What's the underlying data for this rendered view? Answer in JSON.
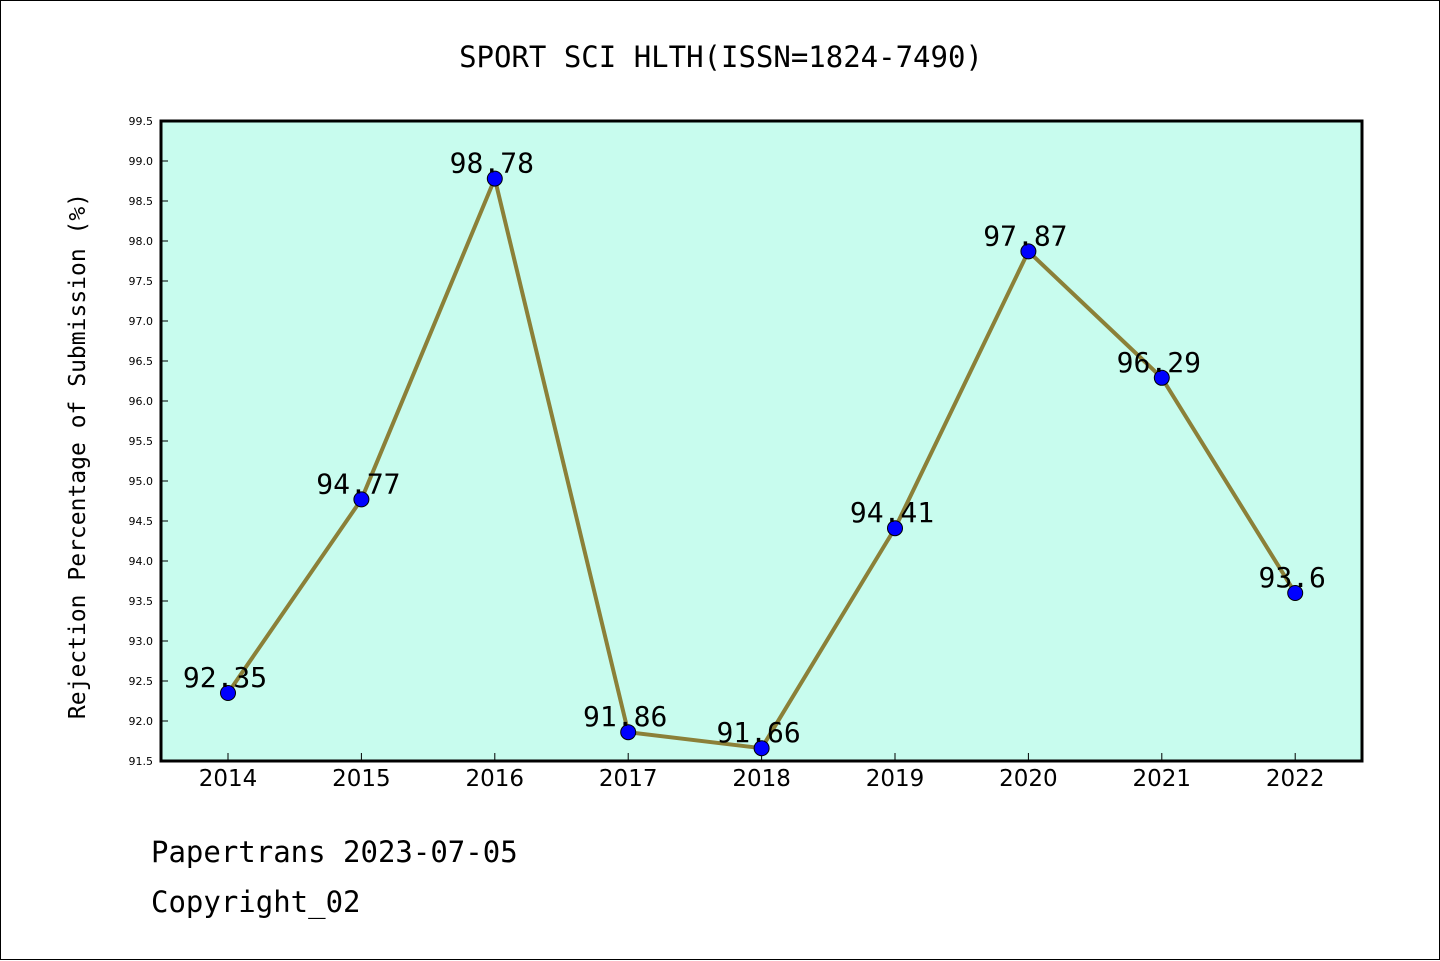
{
  "chart_data": {
    "type": "line",
    "title": "SPORT SCI HLTH(ISSN=1824-7490)",
    "xlabel": "",
    "ylabel": "Rejection Percentage of Submission (%)",
    "categories": [
      "2014",
      "2015",
      "2016",
      "2017",
      "2018",
      "2019",
      "2020",
      "2021",
      "2022"
    ],
    "series": [
      {
        "values": [
          92.35,
          94.77,
          98.78,
          91.86,
          91.66,
          94.41,
          97.87,
          96.29,
          93.6
        ],
        "labels": [
          "92.35",
          "94.77",
          "98.78",
          "91.86",
          "91.66",
          "94.41",
          "97.87",
          "96.29",
          "93.6"
        ]
      }
    ],
    "ylim": [
      91.5,
      99.5
    ],
    "yticks": [
      "91.5",
      "92.0",
      "92.5",
      "93.0",
      "93.5",
      "94.0",
      "94.5",
      "95.0",
      "95.5",
      "96.0",
      "96.5",
      "97.0",
      "97.5",
      "98.0",
      "98.5",
      "99.0",
      "99.5"
    ],
    "grid": false,
    "colors": {
      "plot_background": "#c8fcee",
      "line": "#8b8038",
      "marker": "#0000ff"
    }
  },
  "footer": {
    "line1": "Papertrans 2023-07-05",
    "line2": "Copyright_02"
  }
}
